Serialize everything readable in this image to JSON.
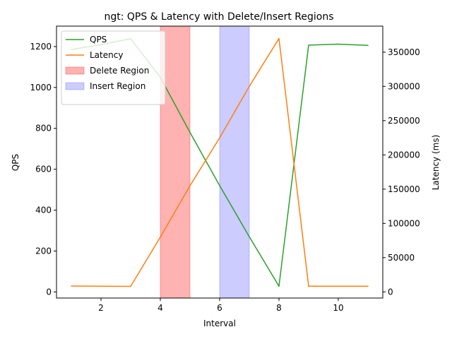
{
  "chart_data": {
    "type": "line",
    "title": "ngt: QPS & Latency with Delete/Insert Regions",
    "xlabel": "Interval",
    "ylabel_left": "QPS",
    "ylabel_right": "Latency (ms)",
    "xlim": [
      0.5,
      11.5
    ],
    "ylim_left": [
      -30,
      1300
    ],
    "ylim_right": [
      -9000,
      388000
    ],
    "xticks": [
      2,
      4,
      6,
      8,
      10
    ],
    "yticks_left": [
      0,
      200,
      400,
      600,
      800,
      1000,
      1200
    ],
    "yticks_right": [
      0,
      50000,
      100000,
      150000,
      200000,
      250000,
      300000,
      350000
    ],
    "x": [
      1,
      2,
      3,
      4,
      5,
      6,
      7,
      8,
      9,
      10,
      11
    ],
    "series": [
      {
        "name": "QPS",
        "axis": "left",
        "color": "#2ca02c",
        "values": [
          1185,
          1210,
          1238,
          1050,
          780,
          520,
          270,
          28,
          1207,
          1212,
          1206
        ]
      },
      {
        "name": "Latency",
        "axis": "right",
        "color": "#ff7f0e",
        "values": [
          8500,
          8300,
          8000,
          80000,
          155000,
          225000,
          300000,
          370000,
          8200,
          8200,
          8300
        ]
      }
    ],
    "regions": [
      {
        "name": "Delete Region",
        "x_start": 4,
        "x_end": 5,
        "color": "#ff0000",
        "opacity": 0.3
      },
      {
        "name": "Insert Region",
        "x_start": 6,
        "x_end": 7,
        "color": "#0000ff",
        "opacity": 0.2
      }
    ],
    "legend": {
      "placement": "top-left"
    },
    "grid": false
  }
}
